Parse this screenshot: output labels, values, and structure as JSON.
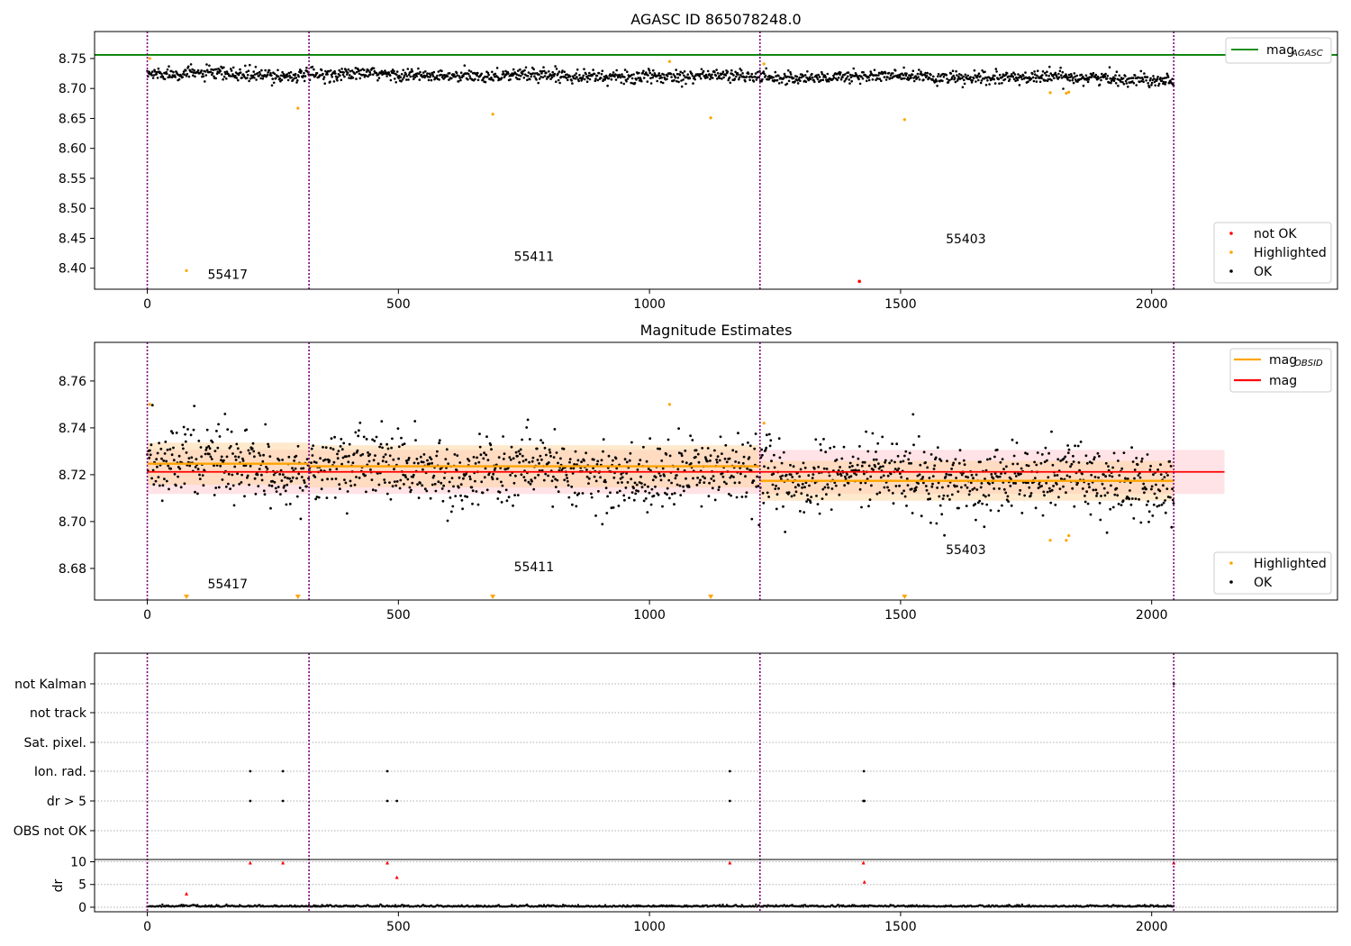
{
  "chart_data": [
    {
      "type": "scatter",
      "title": "AGASC ID 865078248.0",
      "xlim": [
        -105,
        2370
      ],
      "ylim": [
        8.365,
        8.795
      ],
      "xticks": [
        "0",
        "500",
        "1000",
        "1500",
        "2000"
      ],
      "yticks": [
        "8.40",
        "8.45",
        "8.50",
        "8.55",
        "8.60",
        "8.65",
        "8.70",
        "8.75"
      ],
      "obsid_boundaries": [
        0,
        322,
        1220,
        2044
      ],
      "obsid_labels": [
        {
          "text": "55417",
          "x": 120,
          "y": 8.382
        },
        {
          "text": "55411",
          "x": 730,
          "y": 8.412
        },
        {
          "text": "55403",
          "x": 1590,
          "y": 8.442
        }
      ],
      "mag_agasc": 8.756,
      "ok_band": {
        "center_start": 8.724,
        "center_end": 8.717,
        "halfwidth": 0.011
      },
      "highlighted": [
        [
          5,
          8.75
        ],
        [
          78,
          8.396
        ],
        [
          300,
          8.667
        ],
        [
          688,
          8.657
        ],
        [
          1040,
          8.745
        ],
        [
          1122,
          8.651
        ],
        [
          1228,
          8.741
        ],
        [
          1508,
          8.648
        ],
        [
          1798,
          8.693
        ],
        [
          1830,
          8.692
        ],
        [
          1835,
          8.694
        ]
      ],
      "not_ok": [
        [
          1418,
          8.378
        ]
      ],
      "legends": [
        {
          "position": "top-right",
          "entries": [
            {
              "label": "mag",
              "sub": "AGASC",
              "color": "#008000",
              "kind": "line"
            }
          ]
        },
        {
          "position": "bottom-right",
          "entries": [
            {
              "label": "not OK",
              "color": "#ff0000",
              "kind": "point"
            },
            {
              "label": "Highlighted",
              "color": "#ffa500",
              "kind": "point"
            },
            {
              "label": "OK",
              "color": "#000000",
              "kind": "point"
            }
          ]
        }
      ]
    },
    {
      "type": "scatter",
      "title": "Magnitude Estimates",
      "xlim": [
        -105,
        2370
      ],
      "ylim": [
        8.6665,
        8.7765
      ],
      "xticks": [
        "0",
        "500",
        "1000",
        "1500",
        "2000"
      ],
      "yticks": [
        "8.68",
        "8.70",
        "8.72",
        "8.74",
        "8.76"
      ],
      "obsid_boundaries": [
        0,
        322,
        1220,
        2044
      ],
      "obsid_labels": [
        {
          "text": "55417",
          "x": 120,
          "y": 8.6715
        },
        {
          "text": "55411",
          "x": 730,
          "y": 8.6788
        },
        {
          "text": "55403",
          "x": 1590,
          "y": 8.6862
        }
      ],
      "mag": {
        "value": 8.7212,
        "band": [
          8.7118,
          8.7306
        ],
        "xrange": [
          0,
          2145
        ]
      },
      "mag_obsid": [
        {
          "x": [
            0,
            322
          ],
          "value": 8.7247,
          "band": [
            8.7157,
            8.7337
          ]
        },
        {
          "x": [
            322,
            1220
          ],
          "value": 8.7236,
          "band": [
            8.7146,
            8.7326
          ]
        },
        {
          "x": [
            1220,
            2044
          ],
          "value": 8.7174,
          "band": [
            8.7089,
            8.7259
          ]
        }
      ],
      "ok_band": {
        "center_start": 8.724,
        "center_end": 8.717,
        "halfwidth": 0.011
      },
      "highlighted": [
        [
          5,
          8.75
        ],
        [
          1040,
          8.75
        ],
        [
          1228,
          8.742
        ],
        [
          1798,
          8.692
        ],
        [
          1830,
          8.692
        ],
        [
          1835,
          8.694
        ]
      ],
      "below_range_markers": [
        78,
        300,
        688,
        1122,
        1508
      ],
      "legends": [
        {
          "position": "top-right",
          "entries": [
            {
              "label": "mag",
              "sub": "OBSID",
              "color": "#ffa500",
              "kind": "line"
            },
            {
              "label": "mag",
              "sub": "",
              "color": "#ff0000",
              "kind": "line"
            }
          ]
        },
        {
          "position": "bottom-right",
          "entries": [
            {
              "label": "Highlighted",
              "color": "#ffa500",
              "kind": "point"
            },
            {
              "label": "OK",
              "color": "#000000",
              "kind": "point"
            }
          ]
        }
      ]
    },
    {
      "type": "scatter",
      "title": "",
      "xlim": [
        -105,
        2370
      ],
      "xticks": [
        "0",
        "500",
        "1000",
        "1500",
        "2000"
      ],
      "obsid_boundaries": [
        0,
        322,
        1220,
        2044
      ],
      "flag_categories": [
        "not Kalman",
        "not track",
        "Sat. pixel.",
        "Ion. rad.",
        "dr > 5",
        "OBS not OK"
      ],
      "flag_points": {
        "Ion. rad.": [
          205,
          270,
          478,
          1160,
          1427
        ],
        "dr > 5": [
          205,
          270,
          478,
          497,
          1160,
          1426,
          1428
        ],
        "not Kalman": [
          2044
        ]
      },
      "dr": {
        "ylabel": "dr",
        "ylim": [
          -1,
          10.5
        ],
        "yticks": [
          "0",
          "5",
          "10"
        ],
        "red_points": [
          [
            78,
            3.0
          ],
          [
            205,
            9.8
          ],
          [
            270,
            9.8
          ],
          [
            478,
            9.8
          ],
          [
            497,
            6.6
          ],
          [
            1160,
            9.8
          ],
          [
            1426,
            9.8
          ],
          [
            1428,
            5.6
          ],
          [
            2044,
            9.8
          ]
        ]
      }
    }
  ]
}
